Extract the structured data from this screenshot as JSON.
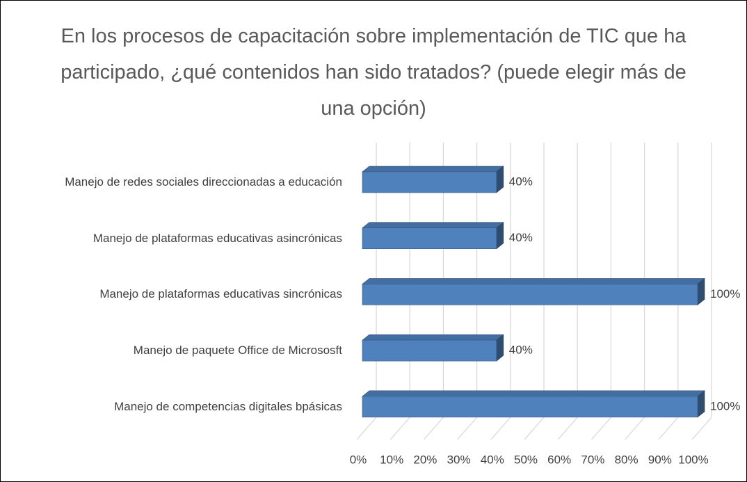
{
  "chart_data": {
    "type": "barh",
    "title": "En los procesos de capacitación sobre implementación de TIC que ha participado, ¿qué contenidos han sido tratados? (puede elegir más de una opción)",
    "categories": [
      "Manejo de redes sociales direccionadas a educación",
      "Manejo de plataformas educativas asincrónicas",
      "Manejo de plataformas educativas sincrónicas",
      "Manejo de paquete Office de Micrososft",
      "Manejo de competencias digitales bpásicas"
    ],
    "values": [
      40,
      40,
      100,
      40,
      100
    ],
    "value_labels": [
      "40%",
      "40%",
      "100%",
      "40%",
      "100%"
    ],
    "color": "#4f81bd",
    "xlim": [
      0,
      100
    ],
    "xticks": [
      {
        "value": 0,
        "label": "0%"
      },
      {
        "value": 10,
        "label": "10%"
      },
      {
        "value": 20,
        "label": "20%"
      },
      {
        "value": 30,
        "label": "30%"
      },
      {
        "value": 40,
        "label": "40%"
      },
      {
        "value": 50,
        "label": "50%"
      },
      {
        "value": 60,
        "label": "60%"
      },
      {
        "value": 70,
        "label": "70%"
      },
      {
        "value": 80,
        "label": "80%"
      },
      {
        "value": 90,
        "label": "90%"
      },
      {
        "value": 100,
        "label": "100%"
      }
    ],
    "grid": true
  }
}
